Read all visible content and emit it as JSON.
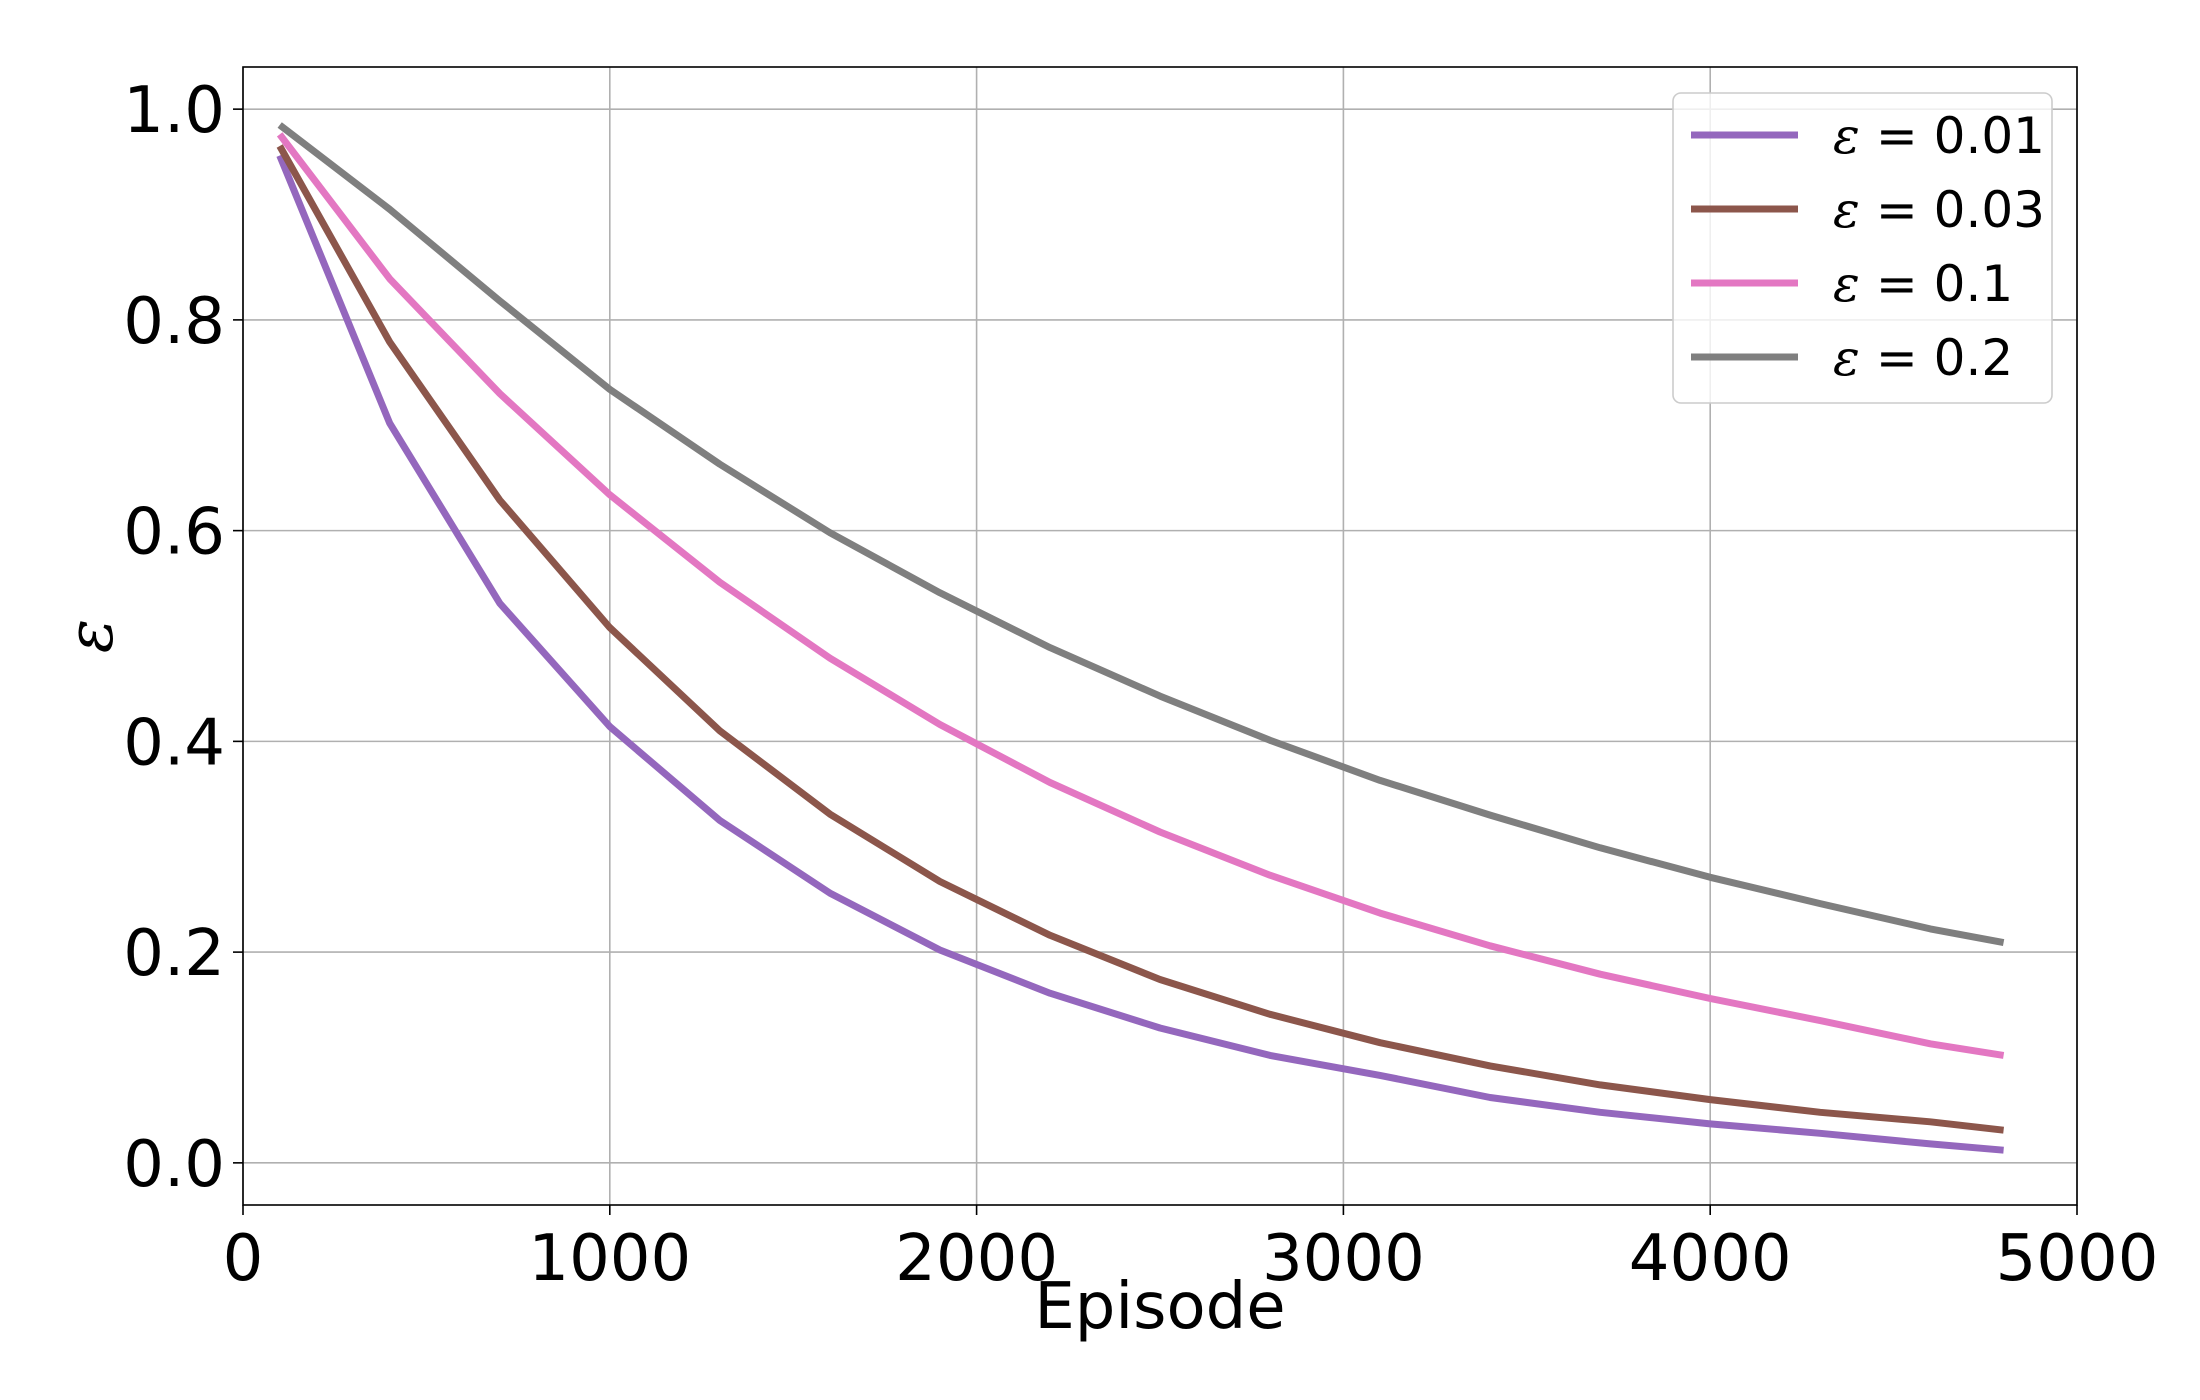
{
  "chart_data": {
    "type": "line",
    "title": "",
    "xlabel": "Episode",
    "ylabel": "ε",
    "xlim": [
      0,
      5000
    ],
    "ylim": [
      -0.04,
      1.04
    ],
    "x_ticks": [
      0,
      1000,
      2000,
      3000,
      4000,
      5000
    ],
    "x_tick_labels": [
      "0",
      "1000",
      "2000",
      "3000",
      "4000",
      "5000"
    ],
    "y_ticks": [
      0.0,
      0.2,
      0.4,
      0.6,
      0.8,
      1.0
    ],
    "y_tick_labels": [
      "0.0",
      "0.2",
      "0.4",
      "0.6",
      "0.8",
      "1.0"
    ],
    "grid": true,
    "legend_position": "top-right",
    "x": [
      100,
      400,
      700,
      1000,
      1300,
      1600,
      1900,
      2200,
      2500,
      2800,
      3100,
      3400,
      3700,
      4000,
      4300,
      4600,
      4800
    ],
    "series": [
      {
        "name": "ε = 0.01",
        "legend_symbol": "ε",
        "legend_value": "= 0.01",
        "color": "#9467bd",
        "values": [
          0.956,
          0.702,
          0.531,
          0.414,
          0.325,
          0.256,
          0.202,
          0.161,
          0.128,
          0.102,
          0.083,
          0.062,
          0.048,
          0.037,
          0.028,
          0.018,
          0.012
        ]
      },
      {
        "name": "ε = 0.03",
        "legend_symbol": "ε",
        "legend_value": "= 0.03",
        "color": "#8c564b",
        "values": [
          0.965,
          0.779,
          0.629,
          0.508,
          0.41,
          0.331,
          0.267,
          0.216,
          0.174,
          0.141,
          0.114,
          0.092,
          0.074,
          0.06,
          0.048,
          0.039,
          0.031
        ]
      },
      {
        "name": "ε = 0.1",
        "legend_symbol": "ε",
        "legend_value": "= 0.1",
        "color": "#e377c2",
        "values": [
          0.976,
          0.839,
          0.73,
          0.634,
          0.551,
          0.479,
          0.416,
          0.361,
          0.314,
          0.273,
          0.237,
          0.206,
          0.179,
          0.156,
          0.135,
          0.113,
          0.102
        ]
      },
      {
        "name": "ε = 0.2",
        "legend_symbol": "ε",
        "legend_value": "= 0.2",
        "color": "#7f7f7f",
        "values": [
          0.985,
          0.905,
          0.818,
          0.734,
          0.663,
          0.598,
          0.541,
          0.489,
          0.443,
          0.401,
          0.363,
          0.33,
          0.299,
          0.271,
          0.246,
          0.222,
          0.209
        ]
      }
    ]
  }
}
